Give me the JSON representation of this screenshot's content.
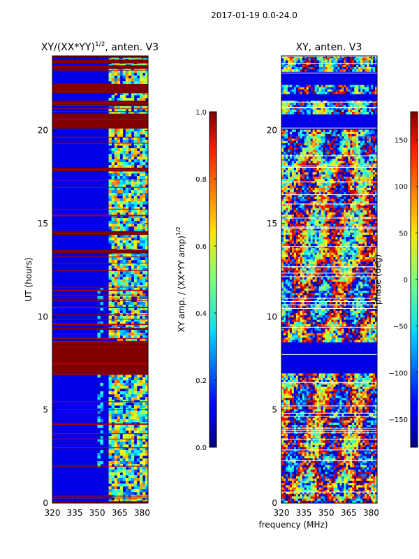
{
  "figure_title": "2017-01-19 0.0-24.0",
  "shared_xlabel": "frequency (MHz)",
  "chart_data": [
    {
      "type": "heatmap",
      "title": "XY/(XX*YY)",
      "title_sup": "1/2",
      "title_suffix": ", anten. V3",
      "xlabel": "",
      "ylabel": "UT (hours)",
      "xlim": [
        320,
        384
      ],
      "ylim": [
        0,
        24
      ],
      "xticks": [
        320,
        335,
        350,
        365,
        380
      ],
      "yticks": [
        0,
        5,
        10,
        15,
        20
      ],
      "colorbar": {
        "label": "XY amp. / (XX*YY amp)",
        "label_sup": "1/2",
        "range": [
          0.0,
          1.0
        ],
        "ticks": [
          "0.0",
          "0.2",
          "0.4",
          "0.6",
          "0.8",
          "1.0"
        ],
        "colormap": "jet"
      },
      "description_note": "Mostly low values (dark blue) with saturated red gaps and horizontal flagged lines; elevated values concentrated between 360 and 384 MHz.",
      "saturated_bands_hours": [
        [
          0.0,
          0.1
        ],
        [
          6.9,
          8.7
        ],
        [
          9.3,
          9.4
        ],
        [
          13.4,
          13.6
        ],
        [
          14.4,
          14.6
        ],
        [
          17.8,
          18.0
        ],
        [
          20.1,
          20.9
        ],
        [
          21.3,
          21.6
        ],
        [
          22.0,
          22.5
        ],
        [
          23.3,
          23.5
        ],
        [
          23.6,
          23.8
        ],
        [
          23.9,
          24.0
        ]
      ]
    },
    {
      "type": "heatmap",
      "title": "XY, anten. V3",
      "xlabel": "",
      "ylabel": "",
      "xlim": [
        320,
        384
      ],
      "ylim": [
        0,
        24
      ],
      "xticks": [
        320,
        335,
        350,
        365,
        380
      ],
      "yticks": [
        0,
        5,
        10,
        15,
        20
      ],
      "colorbar": {
        "label": "phase (deg)",
        "range": [
          -180,
          180
        ],
        "ticks": [
          "−150",
          "−100",
          "−50",
          "0",
          "50",
          "100",
          "150"
        ],
        "tick_values": [
          -150,
          -100,
          -50,
          0,
          50,
          100,
          150
        ],
        "colormap": "jet"
      },
      "description_note": "Phase values spanning full range; flagged data (dark blue) between ~6.9 and 8.7 hours and in several narrow horizontal bands.",
      "flagged_bands_hours": [
        [
          6.9,
          8.7
        ],
        [
          20.1,
          20.9
        ],
        [
          21.6,
          22.0
        ],
        [
          22.5,
          23.2
        ]
      ]
    }
  ]
}
